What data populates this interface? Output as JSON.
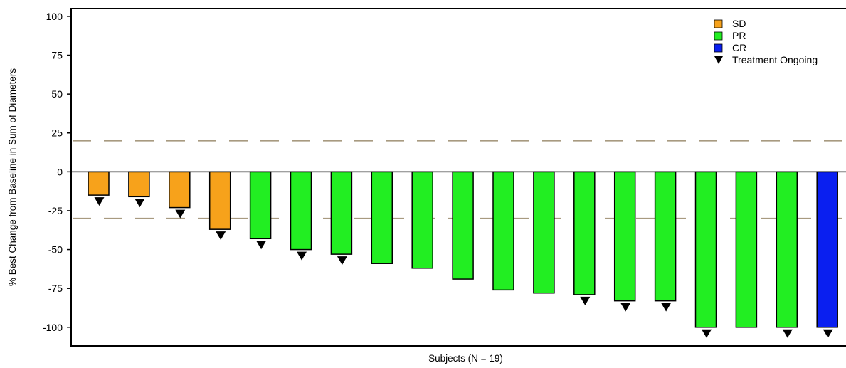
{
  "chart_data": {
    "type": "bar",
    "title": "",
    "xlabel": "Subjects (N = 19)",
    "ylabel": "% Best Change from Baseline in Sum of Diameters",
    "ylim": [
      -112,
      105
    ],
    "yticks": [
      100,
      75,
      50,
      25,
      0,
      -25,
      -50,
      -75,
      -100
    ],
    "grid": false,
    "legend_position": "top-right",
    "reference_lines": [
      20,
      -30
    ],
    "reference_line_color": "#a89a80",
    "series": [
      {
        "name": "SD",
        "color": "#f7a21b"
      },
      {
        "name": "PR",
        "color": "#22ee22"
      },
      {
        "name": "CR",
        "color": "#0a1ff0"
      }
    ],
    "ongoing_marker": {
      "name": "Treatment Ongoing",
      "symbol": "▼",
      "color": "#000000"
    },
    "subjects": [
      {
        "value": -15,
        "response": "SD",
        "ongoing": true
      },
      {
        "value": -16,
        "response": "SD",
        "ongoing": true
      },
      {
        "value": -23,
        "response": "SD",
        "ongoing": true
      },
      {
        "value": -37,
        "response": "SD",
        "ongoing": true
      },
      {
        "value": -43,
        "response": "PR",
        "ongoing": true
      },
      {
        "value": -50,
        "response": "PR",
        "ongoing": true
      },
      {
        "value": -53,
        "response": "PR",
        "ongoing": true
      },
      {
        "value": -59,
        "response": "PR",
        "ongoing": false
      },
      {
        "value": -62,
        "response": "PR",
        "ongoing": false
      },
      {
        "value": -69,
        "response": "PR",
        "ongoing": false
      },
      {
        "value": -76,
        "response": "PR",
        "ongoing": false
      },
      {
        "value": -78,
        "response": "PR",
        "ongoing": false
      },
      {
        "value": -79,
        "response": "PR",
        "ongoing": true
      },
      {
        "value": -83,
        "response": "PR",
        "ongoing": true
      },
      {
        "value": -83,
        "response": "PR",
        "ongoing": true
      },
      {
        "value": -100,
        "response": "PR",
        "ongoing": true
      },
      {
        "value": -100,
        "response": "PR",
        "ongoing": false
      },
      {
        "value": -100,
        "response": "PR",
        "ongoing": true
      },
      {
        "value": -100,
        "response": "CR",
        "ongoing": true
      }
    ]
  }
}
